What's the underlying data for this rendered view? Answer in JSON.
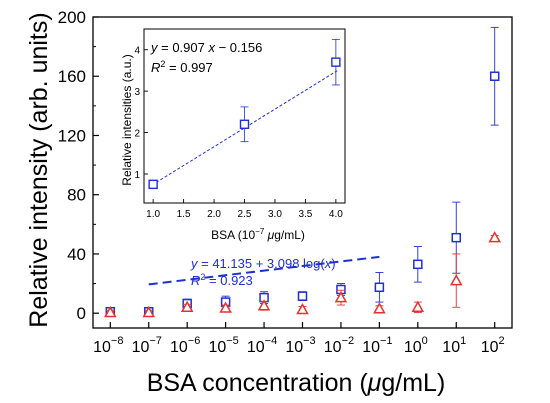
{
  "chart_data": [
    {
      "type": "scatter",
      "xlabel": "BSA concentration (",
      "xlabel_mu": "μ",
      "xlabel_tail": "g/mL)",
      "ylabel": "Relative intensity (arb. units)",
      "xscale": "log",
      "xlim": [
        1e-08,
        100
      ],
      "ylim": [
        -10,
        200
      ],
      "x_ticks": [
        -8,
        -7,
        -6,
        -5,
        -4,
        -3,
        -2,
        -1,
        0,
        1,
        2
      ],
      "y_ticks": [
        0,
        40,
        80,
        120,
        160,
        200
      ],
      "grid": false,
      "series": [
        {
          "marker": "square",
          "color": "#1f2fd6",
          "x": [
            1e-08,
            1e-07,
            1e-06,
            1e-05,
            0.0001,
            0.001,
            0.01,
            0.1,
            1,
            10,
            100
          ],
          "y": [
            1,
            1,
            6.5,
            7.5,
            10.5,
            11.5,
            16,
            17.5,
            33,
            51,
            160
          ],
          "err": [
            2,
            2,
            3,
            4,
            4,
            3,
            4,
            10,
            12,
            24,
            33
          ]
        },
        {
          "marker": "triangle",
          "color": "#e8312c",
          "x": [
            1e-08,
            1e-07,
            1e-06,
            1e-05,
            0.0001,
            0.001,
            0.01,
            0.1,
            1,
            10,
            100
          ],
          "y": [
            0.5,
            0.5,
            4,
            3.5,
            5,
            2.5,
            10.5,
            3,
            4,
            22,
            51
          ],
          "err": [
            1.5,
            1.5,
            2,
            2,
            3,
            2,
            5,
            2,
            3.5,
            18,
            1.5
          ]
        }
      ],
      "fit": {
        "color": "#1f2fd6",
        "x_range": [
          1e-07,
          0.1
        ],
        "intercept": 41.135,
        "slope": 3.098,
        "eq_y": "y",
        "eq_eq": " = 41.135 + 3.098 log(",
        "eq_x": "x",
        "eq_end": ")",
        "r2_r": "R",
        "r2_sup": "2",
        "r2_val": " = 0.923"
      }
    },
    {
      "type": "scatter",
      "xlabel": "BSA (10",
      "xlabel_sup": "−7",
      "xlabel_mu": " μ",
      "xlabel_tail": "g/mL)",
      "ylabel": "Relative intensities (a.u.)",
      "xlim": [
        0.85,
        4.15
      ],
      "ylim": [
        0.3,
        4.5
      ],
      "x_ticks": [
        "1.0",
        "1.5",
        "2.0",
        "2.5",
        "3.0",
        "3.5",
        "4.0"
      ],
      "y_ticks": [
        "1",
        "2",
        "3",
        "4"
      ],
      "grid": false,
      "series": [
        {
          "marker": "square",
          "color": "#1f2fd6",
          "x": [
            1.0,
            2.5,
            4.0
          ],
          "y": [
            0.75,
            2.2,
            3.7
          ],
          "err": [
            0.1,
            0.42,
            0.55
          ]
        }
      ],
      "fit": {
        "color": "#1f2fd6",
        "slope": 0.907,
        "intercept": -0.156,
        "eq_y": "y",
        "eq_mid": " = 0.907 ",
        "eq_x": "x",
        "eq_end": " − 0.156",
        "r2_r": "R",
        "r2_sup": "2",
        "r2_val": " = 0.997"
      }
    }
  ]
}
